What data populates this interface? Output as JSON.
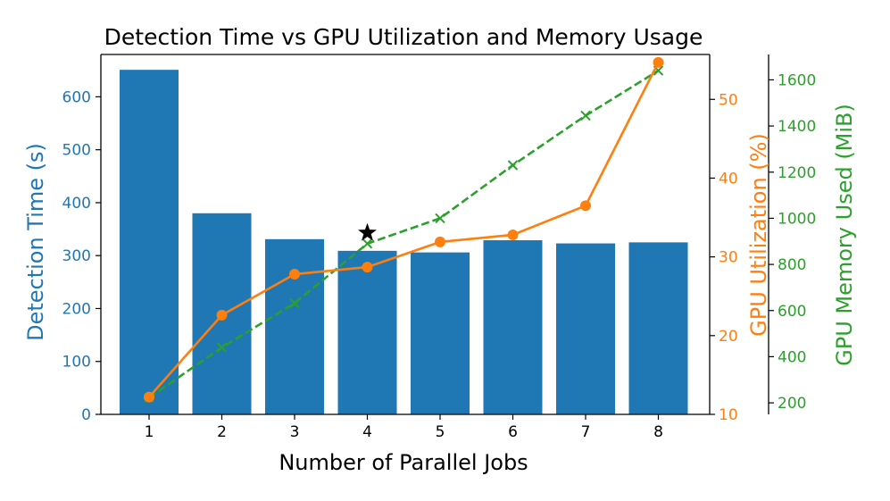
{
  "colors": {
    "bars": "#1f77b4",
    "gpu_util": "#ff7f0e",
    "memory": "#2ca02c",
    "axis": "#000000",
    "star": "#000000"
  },
  "chart_data": {
    "type": "bar",
    "title": "Detection Time vs GPU Utilization and Memory Usage",
    "xlabel": "Number of Parallel Jobs",
    "categories": [
      1,
      2,
      3,
      4,
      5,
      6,
      7,
      8
    ],
    "series": [
      {
        "name": "Detection Time (s)",
        "type": "bar",
        "axis": "left",
        "values": [
          651,
          380,
          331,
          309,
          306,
          329,
          323,
          325
        ]
      },
      {
        "name": "GPU Utilization (%)",
        "type": "line",
        "axis": "right",
        "marker": "circle",
        "line_style": "solid",
        "values": [
          12.2,
          22.6,
          27.8,
          28.7,
          31.9,
          32.8,
          36.5,
          54.7
        ]
      },
      {
        "name": "GPU Memory Used (MiB)",
        "type": "line",
        "axis": "right-outer",
        "marker": "x",
        "line_style": "dashed",
        "values": [
          222,
          440,
          632,
          890,
          1000,
          1230,
          1445,
          1640
        ]
      }
    ],
    "annotation": {
      "marker": "star",
      "x": 4,
      "y": 343,
      "axis": "left"
    },
    "axes": {
      "left": {
        "label": "Detection Time (s)",
        "ylim": [
          0,
          680
        ],
        "ticks": [
          0,
          100,
          200,
          300,
          400,
          500,
          600
        ]
      },
      "right": {
        "label": "GPU Utilization (%)",
        "ylim": [
          10,
          55.7
        ],
        "ticks": [
          10,
          20,
          30,
          40,
          50
        ]
      },
      "right_outer": {
        "label": "GPU Memory Used (MiB)",
        "ylim": [
          150,
          1710
        ],
        "ticks": [
          200,
          400,
          600,
          800,
          1000,
          1200,
          1400,
          1600
        ]
      }
    },
    "grid": false,
    "legend": "none"
  }
}
